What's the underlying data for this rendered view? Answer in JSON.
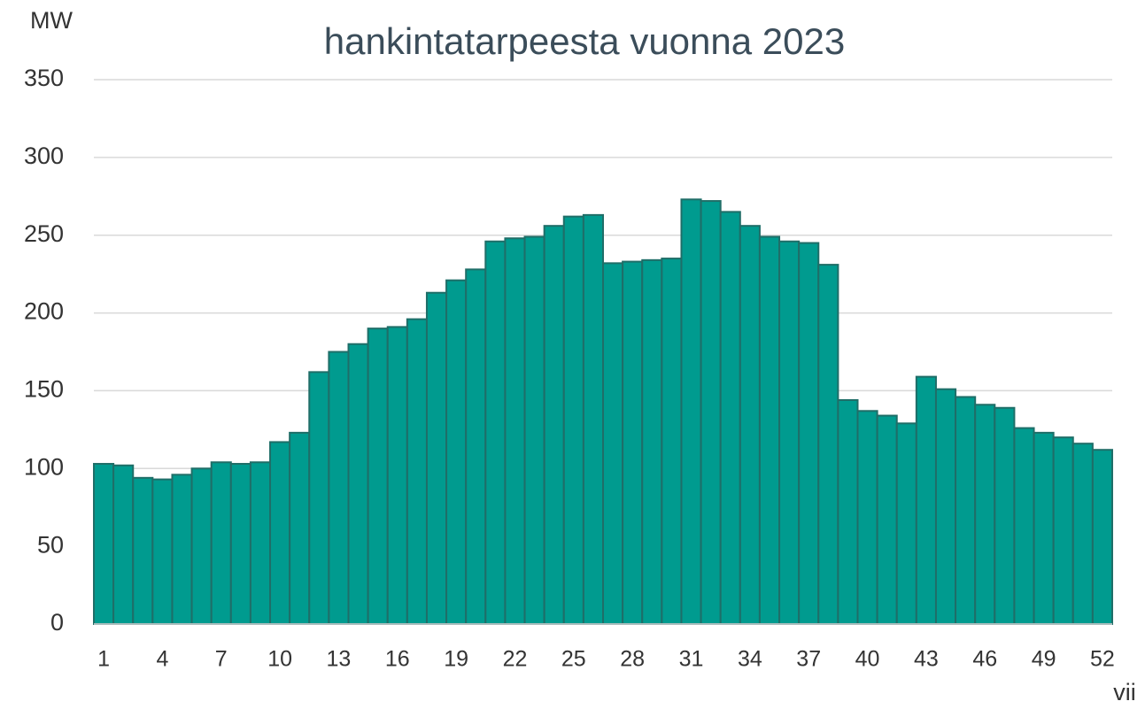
{
  "chart_data": {
    "type": "bar",
    "title": "hankintatarpeesta vuonna 2023",
    "y_label": "MW",
    "x_label": "vii",
    "categories": [
      1,
      null,
      null,
      4,
      null,
      null,
      7,
      null,
      null,
      10,
      null,
      null,
      13,
      null,
      null,
      16,
      null,
      null,
      19,
      null,
      null,
      22,
      null,
      null,
      25,
      null,
      null,
      28,
      null,
      null,
      31,
      null,
      null,
      34,
      null,
      null,
      37,
      null,
      null,
      40,
      null,
      null,
      43,
      null,
      null,
      46,
      null,
      null,
      49,
      null,
      null,
      52
    ],
    "values": [
      103,
      102,
      94,
      93,
      96,
      100,
      104,
      103,
      104,
      117,
      123,
      162,
      175,
      180,
      190,
      191,
      196,
      213,
      221,
      228,
      246,
      248,
      249,
      256,
      262,
      263,
      232,
      233,
      234,
      235,
      273,
      272,
      265,
      256,
      249,
      246,
      245,
      231,
      144,
      137,
      134,
      129,
      159,
      151,
      146,
      141,
      139,
      126,
      123,
      120,
      116,
      112
    ],
    "color": "#009b8f",
    "edge_color": "#1f6e68",
    "ylim": [
      0,
      350
    ],
    "yticks": [
      0,
      50,
      100,
      150,
      200,
      250,
      300,
      350
    ],
    "grid": true
  }
}
